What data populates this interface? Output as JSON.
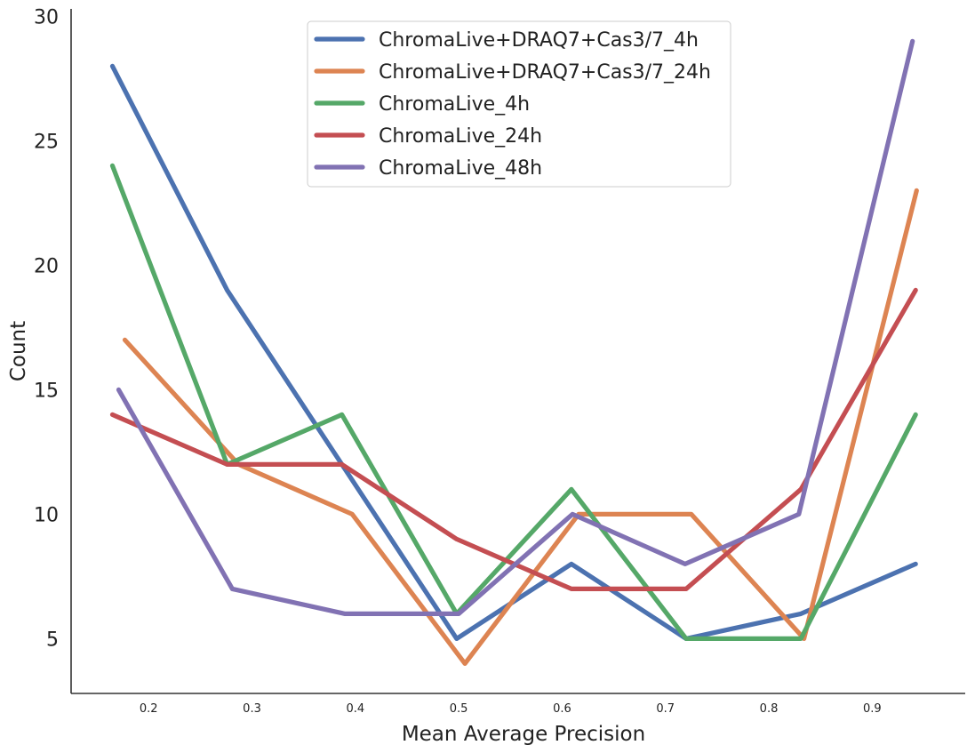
{
  "chart_data": {
    "type": "line",
    "title": "",
    "xlabel": "Mean Average Precision",
    "ylabel": "Count",
    "xlim": [
      0.125,
      0.99
    ],
    "ylim": [
      2.8,
      30.3
    ],
    "xticks": [
      0.2,
      0.3,
      0.4,
      0.5,
      0.6,
      0.7,
      0.8,
      0.9
    ],
    "xtick_labels": [
      "0.2",
      "0.3",
      "0.4",
      "0.5",
      "0.6",
      "0.7",
      "0.8",
      "0.9"
    ],
    "yticks": [
      5,
      10,
      15,
      20,
      25,
      30
    ],
    "ytick_labels": [
      "5",
      "10",
      "15",
      "20",
      "25",
      "30"
    ],
    "grid": false,
    "legend_position": "top-center",
    "series": [
      {
        "name": "ChromaLive+DRAQ7+Cas3/7_4h",
        "color": "#4c72b0",
        "x": [
          0.165,
          0.276,
          0.387,
          0.498,
          0.609,
          0.72,
          0.831,
          0.942
        ],
        "y": [
          28,
          19,
          12,
          5,
          8,
          5,
          6,
          8
        ]
      },
      {
        "name": "ChromaLive+DRAQ7+Cas3/7_24h",
        "color": "#dd8452",
        "x": [
          0.177,
          0.287,
          0.397,
          0.506,
          0.616,
          0.725,
          0.834,
          0.943
        ],
        "y": [
          17,
          12,
          10,
          4,
          10,
          10,
          5,
          23
        ]
      },
      {
        "name": "ChromaLive_4h",
        "color": "#55a868",
        "x": [
          0.165,
          0.276,
          0.387,
          0.498,
          0.609,
          0.72,
          0.831,
          0.942
        ],
        "y": [
          24,
          12,
          14,
          6,
          11,
          5,
          5,
          14
        ]
      },
      {
        "name": "ChromaLive_24h",
        "color": "#c44e52",
        "x": [
          0.165,
          0.276,
          0.387,
          0.498,
          0.609,
          0.72,
          0.831,
          0.942
        ],
        "y": [
          14,
          12,
          12,
          9,
          7,
          7,
          11,
          19
        ]
      },
      {
        "name": "ChromaLive_48h",
        "color": "#8172b3",
        "x": [
          0.171,
          0.281,
          0.39,
          0.5,
          0.61,
          0.719,
          0.829,
          0.939
        ],
        "y": [
          15,
          7,
          6,
          6,
          10,
          8,
          10,
          29
        ]
      }
    ]
  }
}
